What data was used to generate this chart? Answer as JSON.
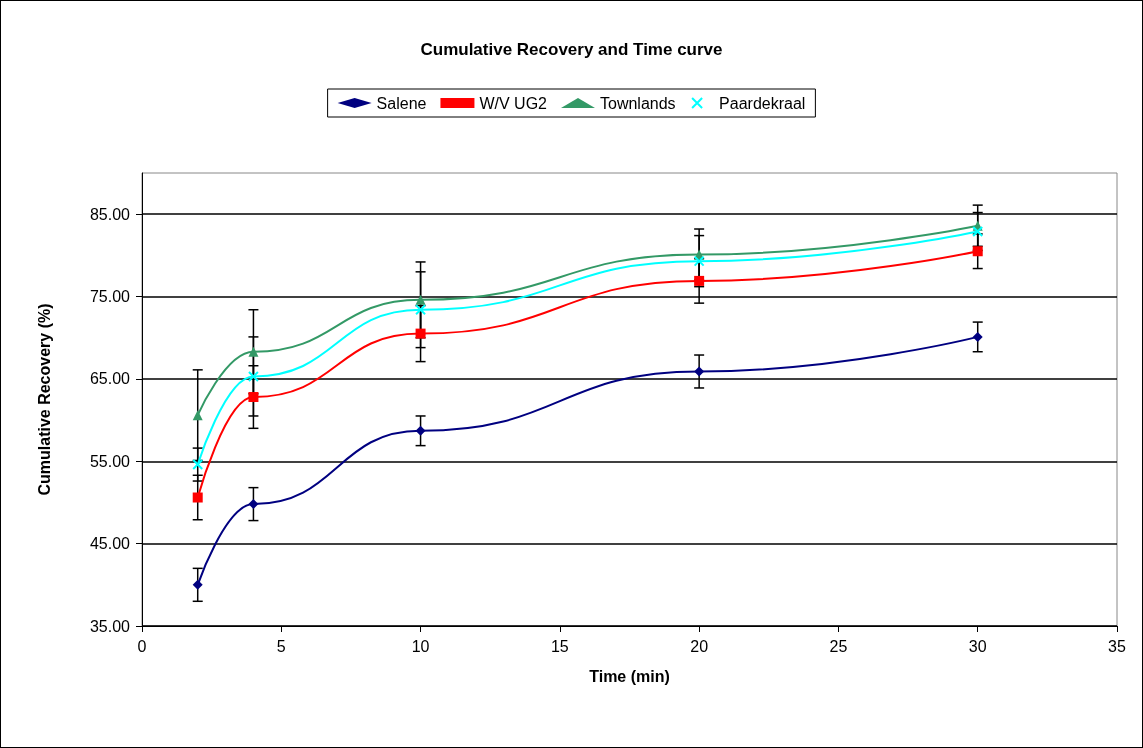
{
  "chart_data": {
    "type": "line",
    "title": "Cumulative Recovery and Time curve",
    "xlabel": "Time (min)",
    "ylabel": "Cumulative Recovery (%)",
    "x": [
      2,
      4,
      10,
      20,
      30
    ],
    "series": [
      {
        "name": "Salene",
        "color": "#000080",
        "marker": "diamond",
        "values": [
          40.0,
          49.8,
          58.7,
          65.9,
          70.1
        ],
        "errors": [
          2.0,
          2.0,
          1.8,
          2.0,
          1.8
        ]
      },
      {
        "name": "W/V UG2",
        "color": "#ff0000",
        "marker": "square",
        "values": [
          50.6,
          62.8,
          70.5,
          76.9,
          80.5
        ],
        "errors": [
          2.7,
          3.8,
          3.4,
          2.7,
          2.1
        ]
      },
      {
        "name": "Townlands",
        "color": "#339966",
        "marker": "triangle",
        "values": [
          60.6,
          68.3,
          74.6,
          80.1,
          83.6
        ],
        "errors": [
          5.5,
          5.1,
          4.6,
          3.1,
          2.5
        ]
      },
      {
        "name": "Paardekraal",
        "color": "#00ffff",
        "marker": "cross",
        "values": [
          54.6,
          65.3,
          73.4,
          79.3,
          82.9
        ],
        "errors": [
          2.0,
          4.8,
          4.6,
          3.1,
          2.3
        ]
      }
    ],
    "xlim": [
      0,
      35
    ],
    "xticks": [
      0,
      5,
      10,
      15,
      20,
      25,
      30,
      35
    ],
    "ylim": [
      35,
      90
    ],
    "yticks": [
      {
        "value": 35,
        "label": "35.00"
      },
      {
        "value": 45,
        "label": "45.00"
      },
      {
        "value": 55,
        "label": "55.00"
      },
      {
        "value": 65,
        "label": "65.00"
      },
      {
        "value": 75,
        "label": "75.00"
      },
      {
        "value": 85,
        "label": "85.00"
      }
    ],
    "grid": "y",
    "legend": "top",
    "line_style": "solid"
  }
}
